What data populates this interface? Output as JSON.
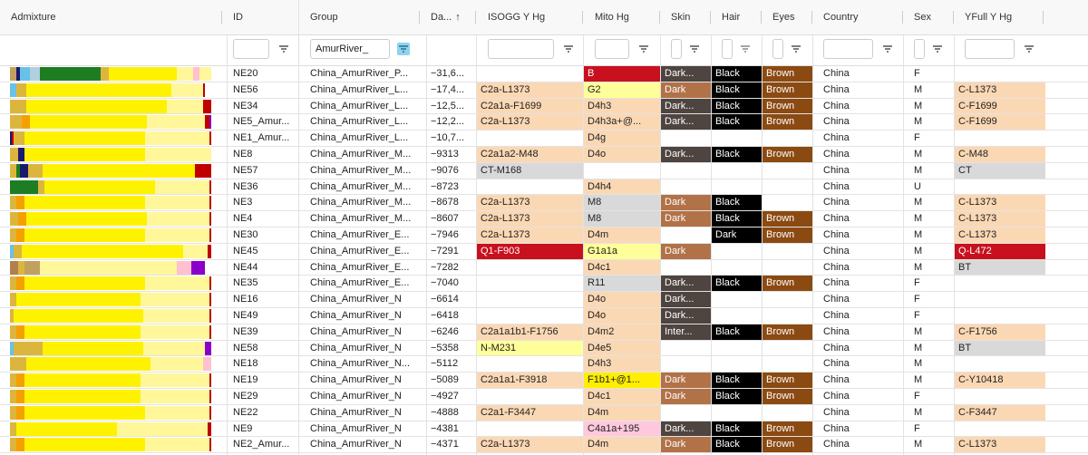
{
  "header": {
    "columns": [
      "Admixture",
      "ID",
      "Group",
      "Da...",
      "ISOGG Y Hg",
      "Mito Hg",
      "Skin",
      "Hair",
      "Eyes",
      "Country",
      "Sex",
      "YFull Y Hg"
    ],
    "sort_indicator": "↑"
  },
  "filters": {
    "group_value": "AmurRiver_"
  },
  "colors": {
    "skin_dark": "#6b4a3a",
    "skin_dark_orange": "#b27248",
    "skin_dark_gray": "#4e4440",
    "hair_black": "#000000",
    "eyes_brown": "#8b4a12",
    "hg_peach": "#fbd8b4",
    "hg_gray": "#d9d9d9",
    "hg_red": "#c8101e",
    "hg_yellow": "#ffff99",
    "admixture_colors": [
      "#fff200",
      "#fff799",
      "#dcb63c",
      "#1e7d23",
      "#67c2e8",
      "#c00000",
      "#8b00c9",
      "#1a1a6b",
      "#b08050",
      "#ffc0d0",
      "#f4a000"
    ]
  },
  "rows": [
    {
      "id": "NE20",
      "group": "China_AmurRiver_P...",
      "date": "−31,6...",
      "isogg": "",
      "isogg_c": "",
      "mito": "B",
      "mito_c": "red",
      "skin": "Dark...",
      "skin_c": "dg",
      "hair": "Black",
      "eyes": "Brown",
      "country": "China",
      "sex": "F",
      "yfull": "",
      "yfull_c": "",
      "adm": [
        [
          3,
          "#c2a060"
        ],
        [
          2,
          "#1a1a6b"
        ],
        [
          5,
          "#67c2e8"
        ],
        [
          5,
          "#b0d0e0"
        ],
        [
          30,
          "#1e7d23"
        ],
        [
          4,
          "#dcb63c"
        ],
        [
          34,
          "#fff200"
        ],
        [
          8,
          "#fff799"
        ],
        [
          3,
          "#ffc0d0"
        ],
        [
          6,
          "#fff799"
        ]
      ]
    },
    {
      "id": "NE56",
      "group": "China_AmurRiver_L...",
      "date": "−17,4...",
      "isogg": "C2a-L1373",
      "isogg_c": "peach",
      "mito": "G2",
      "mito_c": "yellow",
      "skin": "Dark",
      "skin_c": "do",
      "hair": "Black",
      "eyes": "Brown",
      "country": "China",
      "sex": "M",
      "yfull": "C-L1373",
      "yfull_c": "peach",
      "adm": [
        [
          3,
          "#67c2e8"
        ],
        [
          5,
          "#dcb63c"
        ],
        [
          72,
          "#fff200"
        ],
        [
          16,
          "#fff799"
        ],
        [
          1,
          "#c00000"
        ],
        [
          3,
          "#fff"
        ]
      ]
    },
    {
      "id": "NE34",
      "group": "China_AmurRiver_L...",
      "date": "−12,5...",
      "isogg": "C2a1a-F1699",
      "isogg_c": "peach",
      "mito": "D4h3",
      "mito_c": "peach",
      "skin": "Dark...",
      "skin_c": "dg",
      "hair": "Black",
      "eyes": "Brown",
      "country": "China",
      "sex": "M",
      "yfull": "C-F1699",
      "yfull_c": "peach",
      "adm": [
        [
          8,
          "#dcb63c"
        ],
        [
          70,
          "#fff200"
        ],
        [
          18,
          "#fff799"
        ],
        [
          4,
          "#c00000"
        ]
      ]
    },
    {
      "id": "NE5_Amur...",
      "group": "China_AmurRiver_L...",
      "date": "−12,2...",
      "isogg": "C2a-L1373",
      "isogg_c": "peach",
      "mito": "D4h3a+@...",
      "mito_c": "peach",
      "skin": "Dark...",
      "skin_c": "dg",
      "hair": "Black",
      "eyes": "Brown",
      "country": "China",
      "sex": "M",
      "yfull": "C-F1699",
      "yfull_c": "peach",
      "adm": [
        [
          6,
          "#dcb63c"
        ],
        [
          4,
          "#f4a000"
        ],
        [
          58,
          "#fff200"
        ],
        [
          29,
          "#fff799"
        ],
        [
          2,
          "#c00000"
        ],
        [
          1,
          "#8b00c9"
        ]
      ]
    },
    {
      "id": "NE1_Amur...",
      "group": "China_AmurRiver_L...",
      "date": "−10,7...",
      "isogg": "",
      "isogg_c": "",
      "mito": "D4g",
      "mito_c": "peach",
      "skin": "",
      "skin_c": "",
      "hair": "",
      "eyes": "",
      "country": "China",
      "sex": "F",
      "yfull": "",
      "yfull_c": "",
      "adm": [
        [
          1,
          "#1a1a6b"
        ],
        [
          1,
          "#c00000"
        ],
        [
          5,
          "#dcb63c"
        ],
        [
          60,
          "#fff200"
        ],
        [
          32,
          "#fff799"
        ],
        [
          1,
          "#c00000"
        ]
      ]
    },
    {
      "id": "NE8",
      "group": "China_AmurRiver_M...",
      "date": "−9313",
      "isogg": "C2a1a2-M48",
      "isogg_c": "peach",
      "mito": "D4o",
      "mito_c": "peach",
      "skin": "Dark...",
      "skin_c": "dg",
      "hair": "Black",
      "eyes": "Brown",
      "country": "China",
      "sex": "M",
      "yfull": "C-M48",
      "yfull_c": "peach",
      "adm": [
        [
          4,
          "#dcb63c"
        ],
        [
          3,
          "#1a1a6b"
        ],
        [
          60,
          "#fff200"
        ],
        [
          33,
          "#fff799"
        ]
      ]
    },
    {
      "id": "NE57",
      "group": "China_AmurRiver_M...",
      "date": "−9076",
      "isogg": "CT-M168",
      "isogg_c": "gray",
      "mito": "",
      "mito_c": "",
      "skin": "",
      "skin_c": "",
      "hair": "",
      "eyes": "",
      "country": "China",
      "sex": "M",
      "yfull": "CT",
      "yfull_c": "gray",
      "adm": [
        [
          3,
          "#dcb63c"
        ],
        [
          2,
          "#1e7d23"
        ],
        [
          4,
          "#1a1a6b"
        ],
        [
          7,
          "#dcb63c"
        ],
        [
          76,
          "#fff200"
        ],
        [
          8,
          "#c00000"
        ]
      ]
    },
    {
      "id": "NE36",
      "group": "China_AmurRiver_M...",
      "date": "−8723",
      "isogg": "",
      "isogg_c": "",
      "mito": "D4h4",
      "mito_c": "peach",
      "skin": "",
      "skin_c": "",
      "hair": "",
      "eyes": "",
      "country": "China",
      "sex": "U",
      "yfull": "",
      "yfull_c": "",
      "adm": [
        [
          14,
          "#1e7d23"
        ],
        [
          3,
          "#dcb63c"
        ],
        [
          55,
          "#fff200"
        ],
        [
          27,
          "#fff799"
        ],
        [
          1,
          "#c00000"
        ]
      ]
    },
    {
      "id": "NE3",
      "group": "China_AmurRiver_M...",
      "date": "−8678",
      "isogg": "C2a-L1373",
      "isogg_c": "peach",
      "mito": "M8",
      "mito_c": "gray",
      "skin": "Dark",
      "skin_c": "do",
      "hair": "Black",
      "eyes": "",
      "country": "China",
      "sex": "M",
      "yfull": "C-L1373",
      "yfull_c": "peach",
      "adm": [
        [
          3,
          "#dcb63c"
        ],
        [
          4,
          "#f4a000"
        ],
        [
          60,
          "#fff200"
        ],
        [
          32,
          "#fff799"
        ],
        [
          1,
          "#c00000"
        ]
      ]
    },
    {
      "id": "NE4",
      "group": "China_AmurRiver_M...",
      "date": "−8607",
      "isogg": "C2a-L1373",
      "isogg_c": "peach",
      "mito": "M8",
      "mito_c": "gray",
      "skin": "Dark",
      "skin_c": "do",
      "hair": "Black",
      "eyes": "Brown",
      "country": "China",
      "sex": "M",
      "yfull": "C-L1373",
      "yfull_c": "peach",
      "adm": [
        [
          4,
          "#dcb63c"
        ],
        [
          4,
          "#f4a000"
        ],
        [
          60,
          "#fff200"
        ],
        [
          31,
          "#fff799"
        ],
        [
          1,
          "#c00000"
        ]
      ]
    },
    {
      "id": "NE30",
      "group": "China_AmurRiver_E...",
      "date": "−7946",
      "isogg": "C2a-L1373",
      "isogg_c": "peach",
      "mito": "D4m",
      "mito_c": "peach",
      "skin": "",
      "skin_c": "",
      "hair": "Dark",
      "eyes": "Brown",
      "country": "China",
      "sex": "M",
      "yfull": "C-L1373",
      "yfull_c": "peach",
      "adm": [
        [
          3,
          "#dcb63c"
        ],
        [
          4,
          "#f4a000"
        ],
        [
          60,
          "#fff200"
        ],
        [
          32,
          "#fff799"
        ],
        [
          1,
          "#c00000"
        ]
      ]
    },
    {
      "id": "NE45",
      "group": "China_AmurRiver_E...",
      "date": "−7291",
      "isogg": "Q1-F903",
      "isogg_c": "red",
      "mito": "G1a1a",
      "mito_c": "yellow",
      "skin": "Dark",
      "skin_c": "do",
      "hair": "",
      "eyes": "",
      "country": "China",
      "sex": "M",
      "yfull": "Q-L472",
      "yfull_c": "red",
      "adm": [
        [
          2,
          "#67c2e8"
        ],
        [
          4,
          "#dcb63c"
        ],
        [
          80,
          "#fff200"
        ],
        [
          12,
          "#fff799"
        ],
        [
          2,
          "#c00000"
        ]
      ]
    },
    {
      "id": "NE44",
      "group": "China_AmurRiver_E...",
      "date": "−7282",
      "isogg": "",
      "isogg_c": "",
      "mito": "D4c1",
      "mito_c": "peach",
      "skin": "",
      "skin_c": "",
      "hair": "",
      "eyes": "",
      "country": "China",
      "sex": "M",
      "yfull": "BT",
      "yfull_c": "gray",
      "adm": [
        [
          4,
          "#b08050"
        ],
        [
          3,
          "#dcb63c"
        ],
        [
          8,
          "#c2a060"
        ],
        [
          68,
          "#fff799"
        ],
        [
          7,
          "#ffc0d0"
        ],
        [
          7,
          "#8b00c9"
        ],
        [
          3,
          "#fff"
        ]
      ]
    },
    {
      "id": "NE35",
      "group": "China_AmurRiver_E...",
      "date": "−7040",
      "isogg": "",
      "isogg_c": "",
      "mito": "R11",
      "mito_c": "gray",
      "skin": "Dark...",
      "skin_c": "dg",
      "hair": "Black",
      "eyes": "Brown",
      "country": "China",
      "sex": "F",
      "yfull": "",
      "yfull_c": "",
      "adm": [
        [
          3,
          "#dcb63c"
        ],
        [
          4,
          "#f4a000"
        ],
        [
          60,
          "#fff200"
        ],
        [
          32,
          "#fff799"
        ],
        [
          1,
          "#c00000"
        ]
      ]
    },
    {
      "id": "NE16",
      "group": "China_AmurRiver_N",
      "date": "−6614",
      "isogg": "",
      "isogg_c": "",
      "mito": "D4o",
      "mito_c": "peach",
      "skin": "Dark...",
      "skin_c": "dg",
      "hair": "",
      "eyes": "",
      "country": "China",
      "sex": "F",
      "yfull": "",
      "yfull_c": "",
      "adm": [
        [
          3,
          "#dcb63c"
        ],
        [
          62,
          "#fff200"
        ],
        [
          34,
          "#fff799"
        ],
        [
          1,
          "#c00000"
        ]
      ]
    },
    {
      "id": "NE49",
      "group": "China_AmurRiver_N",
      "date": "−6418",
      "isogg": "",
      "isogg_c": "",
      "mito": "D4o",
      "mito_c": "peach",
      "skin": "Dark...",
      "skin_c": "dg",
      "hair": "",
      "eyes": "",
      "country": "China",
      "sex": "F",
      "yfull": "",
      "yfull_c": "",
      "adm": [
        [
          2,
          "#dcb63c"
        ],
        [
          64,
          "#fff200"
        ],
        [
          33,
          "#fff799"
        ],
        [
          1,
          "#c00000"
        ]
      ]
    },
    {
      "id": "NE39",
      "group": "China_AmurRiver_N",
      "date": "−6246",
      "isogg": "C2a1a1b1-F1756",
      "isogg_c": "peach",
      "mito": "D4m2",
      "mito_c": "peach",
      "skin": "Inter...",
      "skin_c": "dg",
      "hair": "Black",
      "eyes": "Brown",
      "country": "China",
      "sex": "M",
      "yfull": "C-F1756",
      "yfull_c": "peach",
      "adm": [
        [
          3,
          "#dcb63c"
        ],
        [
          4,
          "#f4a000"
        ],
        [
          58,
          "#fff200"
        ],
        [
          34,
          "#fff799"
        ],
        [
          1,
          "#c00000"
        ]
      ]
    },
    {
      "id": "NE58",
      "group": "China_AmurRiver_N",
      "date": "−5358",
      "isogg": "N-M231",
      "isogg_c": "yellow",
      "mito": "D4e5",
      "mito_c": "peach",
      "skin": "",
      "skin_c": "",
      "hair": "",
      "eyes": "",
      "country": "China",
      "sex": "M",
      "yfull": "BT",
      "yfull_c": "gray",
      "adm": [
        [
          2,
          "#67c2e8"
        ],
        [
          14,
          "#dcb63c"
        ],
        [
          50,
          "#fff200"
        ],
        [
          31,
          "#fff799"
        ],
        [
          3,
          "#8b00c9"
        ]
      ]
    },
    {
      "id": "NE18",
      "group": "China_AmurRiver_N...",
      "date": "−5112",
      "isogg": "",
      "isogg_c": "",
      "mito": "D4h3",
      "mito_c": "peach",
      "skin": "",
      "skin_c": "",
      "hair": "",
      "eyes": "",
      "country": "China",
      "sex": "M",
      "yfull": "",
      "yfull_c": "",
      "adm": [
        [
          8,
          "#dcb63c"
        ],
        [
          62,
          "#fff200"
        ],
        [
          26,
          "#fff799"
        ],
        [
          4,
          "#ffc0d0"
        ]
      ]
    },
    {
      "id": "NE19",
      "group": "China_AmurRiver_N",
      "date": "−5089",
      "isogg": "C2a1a1-F3918",
      "isogg_c": "peach",
      "mito": "F1b1+@1...",
      "mito_c": "brightyellow",
      "skin": "Dark",
      "skin_c": "do",
      "hair": "Black",
      "eyes": "Brown",
      "country": "China",
      "sex": "M",
      "yfull": "C-Y10418",
      "yfull_c": "peach",
      "adm": [
        [
          3,
          "#dcb63c"
        ],
        [
          4,
          "#f4a000"
        ],
        [
          58,
          "#fff200"
        ],
        [
          34,
          "#fff799"
        ],
        [
          1,
          "#c00000"
        ]
      ]
    },
    {
      "id": "NE29",
      "group": "China_AmurRiver_N",
      "date": "−4927",
      "isogg": "",
      "isogg_c": "",
      "mito": "D4c1",
      "mito_c": "peach",
      "skin": "Dark",
      "skin_c": "do",
      "hair": "Black",
      "eyes": "Brown",
      "country": "China",
      "sex": "F",
      "yfull": "",
      "yfull_c": "",
      "adm": [
        [
          3,
          "#dcb63c"
        ],
        [
          4,
          "#f4a000"
        ],
        [
          58,
          "#fff200"
        ],
        [
          34,
          "#fff799"
        ],
        [
          1,
          "#c00000"
        ]
      ]
    },
    {
      "id": "NE22",
      "group": "China_AmurRiver_N",
      "date": "−4888",
      "isogg": "C2a1-F3447",
      "isogg_c": "peach",
      "mito": "D4m",
      "mito_c": "peach",
      "skin": "",
      "skin_c": "",
      "hair": "",
      "eyes": "",
      "country": "China",
      "sex": "M",
      "yfull": "C-F3447",
      "yfull_c": "peach",
      "adm": [
        [
          3,
          "#dcb63c"
        ],
        [
          4,
          "#f4a000"
        ],
        [
          60,
          "#fff200"
        ],
        [
          32,
          "#fff799"
        ],
        [
          1,
          "#c00000"
        ]
      ]
    },
    {
      "id": "NE9",
      "group": "China_AmurRiver_N",
      "date": "−4381",
      "isogg": "",
      "isogg_c": "",
      "mito": "C4a1a+195",
      "mito_c": "pink",
      "skin": "Dark...",
      "skin_c": "dg",
      "hair": "Black",
      "eyes": "Brown",
      "country": "China",
      "sex": "F",
      "yfull": "",
      "yfull_c": "",
      "adm": [
        [
          3,
          "#dcb63c"
        ],
        [
          50,
          "#fff200"
        ],
        [
          45,
          "#fff799"
        ],
        [
          2,
          "#c00000"
        ]
      ]
    },
    {
      "id": "NE2_Amur...",
      "group": "China_AmurRiver_N",
      "date": "−4371",
      "isogg": "C2a-L1373",
      "isogg_c": "peach",
      "mito": "D4m",
      "mito_c": "peach",
      "skin": "Dark",
      "skin_c": "do",
      "hair": "Black",
      "eyes": "Brown",
      "country": "China",
      "sex": "M",
      "yfull": "C-L1373",
      "yfull_c": "peach",
      "adm": [
        [
          3,
          "#dcb63c"
        ],
        [
          4,
          "#f4a000"
        ],
        [
          60,
          "#fff200"
        ],
        [
          32,
          "#fff799"
        ],
        [
          1,
          "#c00000"
        ]
      ]
    }
  ]
}
